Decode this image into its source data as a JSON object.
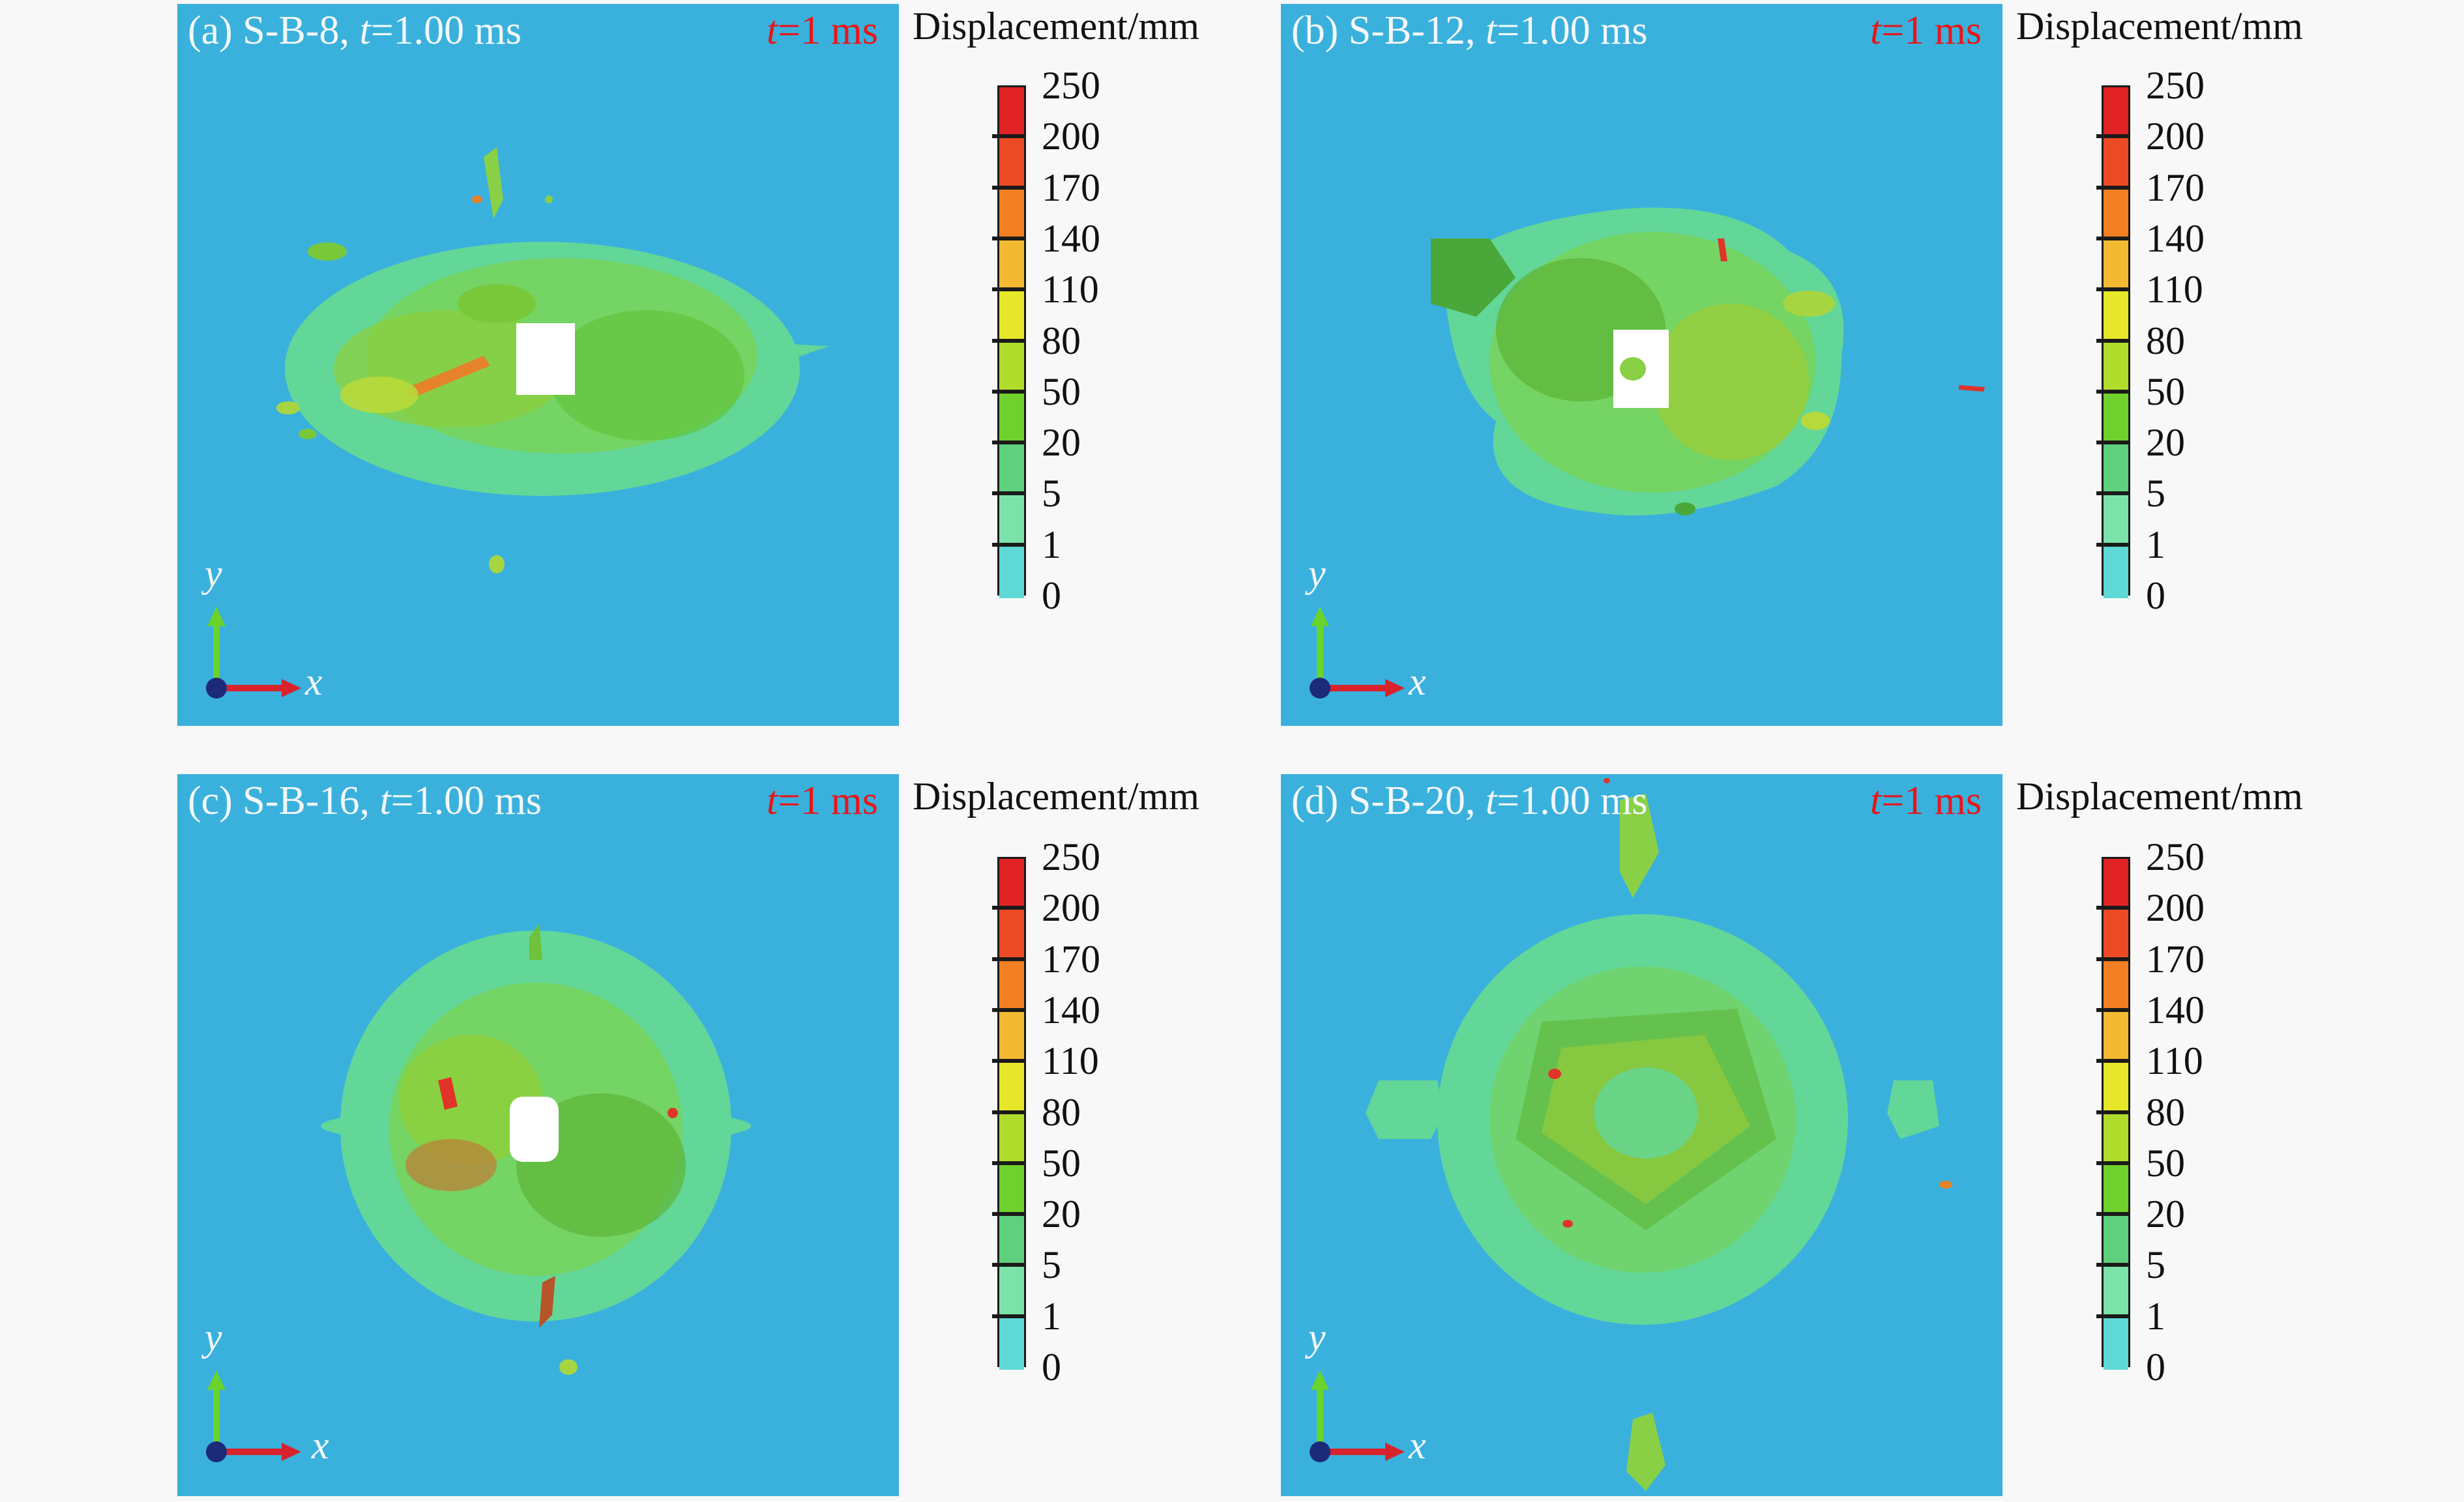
{
  "legend_title": "Displacement/mm",
  "legend_values": [
    "250",
    "200",
    "170",
    "140",
    "110",
    "80",
    "50",
    "20",
    "5",
    "1",
    "0"
  ],
  "legend_colors": [
    "#e12326",
    "#eb4a24",
    "#f27f22",
    "#f4b933",
    "#e6e62a",
    "#b0dd2c",
    "#6fd12c",
    "#5ed07e",
    "#7be3a9",
    "#5ed9d6"
  ],
  "time_tag": {
    "var": "t",
    "text": "=1 ms"
  },
  "axes": {
    "x": "x",
    "y": "y"
  },
  "panels": [
    {
      "label": "(a) S-B-8, ",
      "var": "t",
      "time": "=1.00 ms"
    },
    {
      "label": "(b) S-B-12, ",
      "var": "t",
      "time": "=1.00 ms"
    },
    {
      "label": "(c) S-B-16, ",
      "var": "t",
      "time": "=1.00 ms"
    },
    {
      "label": "(d) S-B-20, ",
      "var": "t",
      "time": "=1.00 ms"
    }
  ]
}
